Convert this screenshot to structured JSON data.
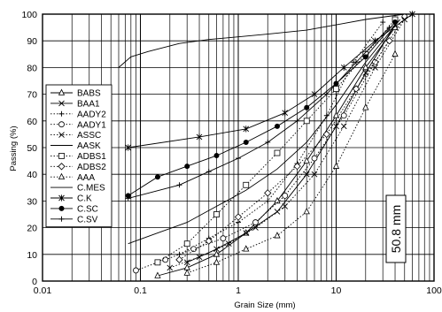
{
  "chart_data": {
    "type": "line",
    "title": "",
    "xlabel": "Grain Size (mm)",
    "ylabel": "Passing (%)",
    "xscale": "log",
    "xlim": [
      0.01,
      100
    ],
    "ylim": [
      0,
      100
    ],
    "x_tick_labels": [
      "0.01",
      "0.1",
      "1",
      "10",
      "100"
    ],
    "y_tick_labels": [
      "0",
      "10",
      "20",
      "30",
      "40",
      "50",
      "60",
      "70",
      "80",
      "90",
      "100"
    ],
    "grid": "vertical minor log lines and horizontal lines every 10%",
    "legend_position": "left",
    "annotation": "50.8 mm",
    "series": [
      {
        "name": "BABS",
        "marker": "triangle",
        "dash": "solid",
        "x": [
          0.15,
          0.3,
          0.6,
          1.2,
          2.5,
          5,
          10,
          20,
          40
        ],
        "y": [
          2,
          5,
          10,
          18,
          30,
          45,
          62,
          80,
          95
        ]
      },
      {
        "name": "BAA1",
        "marker": "x",
        "dash": "solid",
        "x": [
          0.3,
          0.6,
          1.2,
          2.5,
          5,
          10,
          20,
          40
        ],
        "y": [
          7,
          12,
          18,
          26,
          40,
          58,
          78,
          96
        ]
      },
      {
        "name": "AADY2",
        "marker": "plus",
        "dash": "dotted",
        "x": [
          0.25,
          0.5,
          1,
          2,
          4,
          8,
          15,
          30
        ],
        "y": [
          10,
          16,
          22,
          30,
          44,
          62,
          82,
          97
        ]
      },
      {
        "name": "AADY1",
        "marker": "circle",
        "dash": "dotted",
        "x": [
          0.09,
          0.18,
          0.35,
          0.7,
          1.5,
          3,
          6,
          12,
          25,
          50
        ],
        "y": [
          4,
          8,
          12,
          16,
          22,
          32,
          46,
          62,
          82,
          99
        ]
      },
      {
        "name": "ASSC",
        "marker": "x",
        "dash": "dotted",
        "x": [
          0.2,
          0.4,
          0.8,
          1.5,
          3,
          6,
          12,
          25,
          50
        ],
        "y": [
          5,
          9,
          14,
          20,
          28,
          40,
          58,
          80,
          98
        ]
      },
      {
        "name": "AASK",
        "marker": "none",
        "dash": "solid",
        "x": [
          0.075,
          0.15,
          0.3,
          0.6,
          1.2,
          2.5,
          5,
          10,
          20,
          45
        ],
        "y": [
          14,
          18,
          22,
          28,
          34,
          42,
          52,
          66,
          82,
          98
        ]
      },
      {
        "name": "ADBS1",
        "marker": "square",
        "dash": "dotted",
        "x": [
          0.15,
          0.3,
          0.6,
          1.2,
          2.5,
          5,
          10,
          20,
          40
        ],
        "y": [
          7,
          14,
          25,
          36,
          48,
          60,
          72,
          85,
          98
        ]
      },
      {
        "name": "ADBS2",
        "marker": "diamond",
        "dash": "dotted",
        "x": [
          0.25,
          0.5,
          1,
          2,
          4,
          8,
          16,
          35
        ],
        "y": [
          8,
          15,
          24,
          33,
          43,
          55,
          72,
          90
        ]
      },
      {
        "name": "AAA",
        "marker": "triangle",
        "dash": "dotted",
        "x": [
          0.3,
          0.6,
          1.2,
          2.5,
          5,
          10,
          20,
          40
        ],
        "y": [
          3,
          7,
          12,
          17,
          26,
          43,
          65,
          85
        ]
      },
      {
        "name": "C.MES",
        "marker": "none",
        "dash": "solid",
        "x": [
          0.06,
          0.08,
          0.12,
          0.25,
          0.5,
          1,
          2,
          5,
          10,
          20,
          50
        ],
        "y": [
          80,
          84,
          86,
          89,
          90.5,
          91.5,
          92.5,
          94,
          96,
          98,
          100
        ]
      },
      {
        "name": "C.K",
        "marker": "star",
        "dash": "solid",
        "x": [
          0.075,
          0.4,
          1.2,
          3,
          6,
          12,
          25,
          60
        ],
        "y": [
          50,
          54,
          57,
          63,
          70,
          80,
          90,
          100
        ]
      },
      {
        "name": "C.SC",
        "marker": "filled-circle",
        "dash": "solid",
        "x": [
          0.075,
          0.15,
          0.3,
          0.6,
          1.2,
          2.5,
          5,
          10,
          20,
          40
        ],
        "y": [
          32,
          39,
          43,
          47,
          52,
          58,
          65,
          74,
          84,
          97
        ]
      },
      {
        "name": "C.SV",
        "marker": "plus",
        "dash": "solid",
        "x": [
          0.075,
          0.25,
          0.5,
          1,
          2,
          4,
          8,
          16,
          35
        ],
        "y": [
          31,
          36,
          41,
          46,
          52,
          60,
          70,
          82,
          95
        ]
      }
    ]
  }
}
